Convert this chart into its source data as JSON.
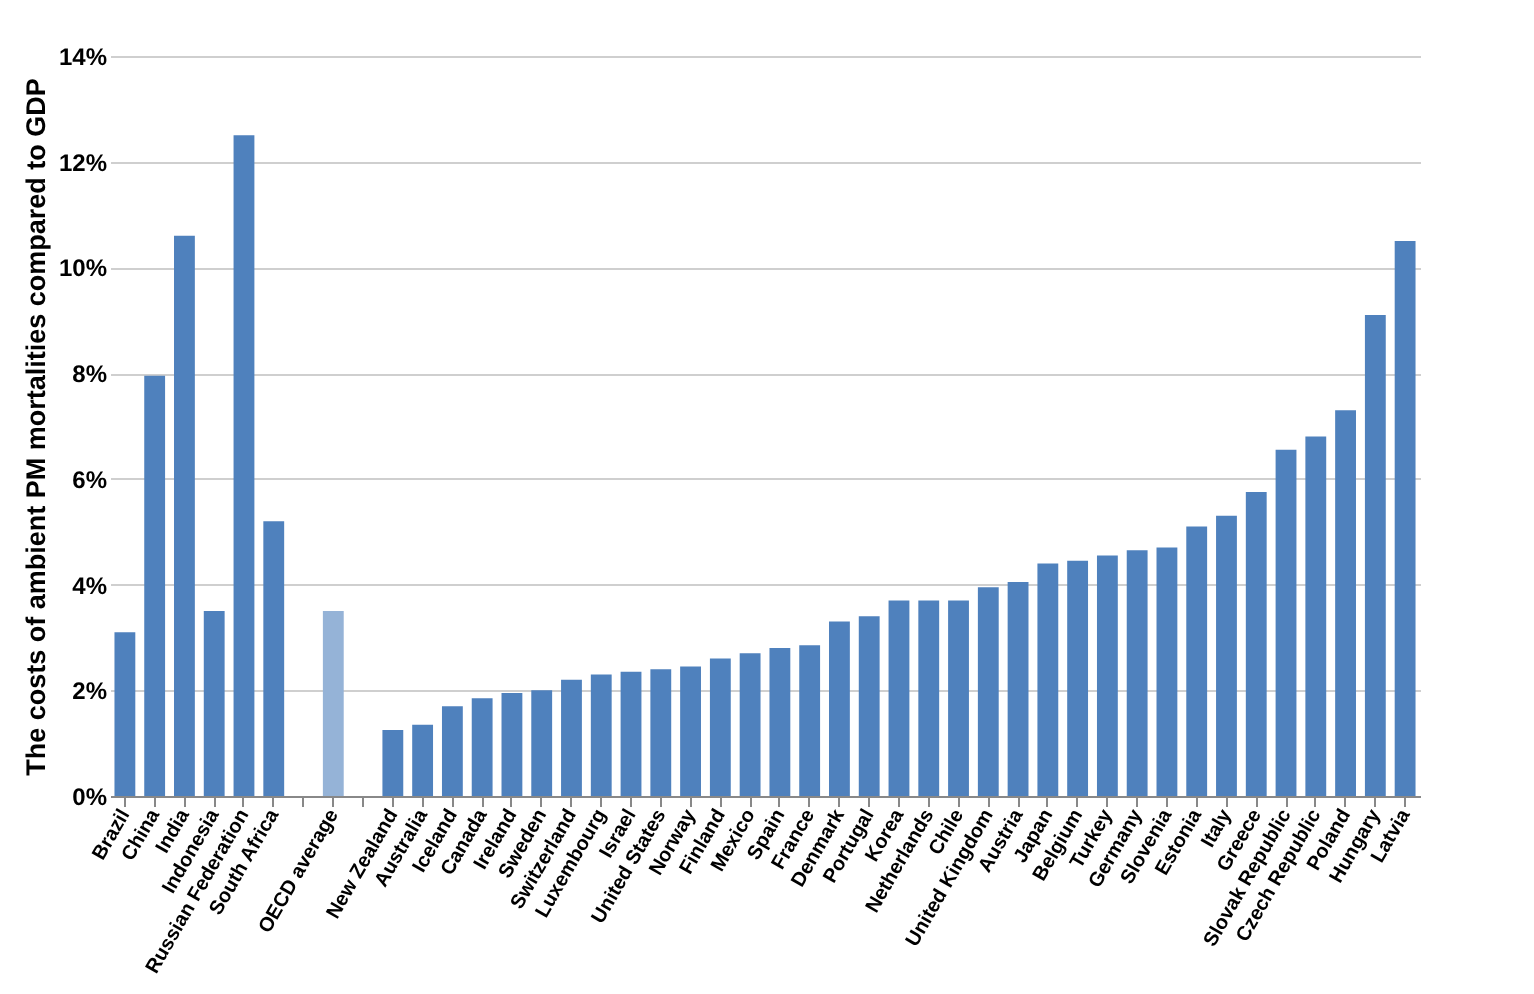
{
  "chart_data": {
    "type": "bar",
    "ylabel": "The costs of ambient PM mortalities compared to GDP",
    "categories": [
      "Brazil",
      "China",
      "India",
      "Indonesia",
      "Russian Federation",
      "South Africa",
      null,
      "OECD average",
      null,
      "New Zealand",
      "Australia",
      "Iceland",
      "Canada",
      "Ireland",
      "Sweden",
      "Switzerland",
      "Luxembourg",
      "Israel",
      "United States",
      "Norway",
      "Finland",
      "Mexico",
      "Spain",
      "France",
      "Denmark",
      "Portugal",
      "Korea",
      "Netherlands",
      "Chile",
      "United Kingdom",
      "Austria",
      "Japan",
      "Belgium",
      "Turkey",
      "Germany",
      "Slovenia",
      "Estonia",
      "Italy",
      "Greece",
      "Slovak Republic",
      "Czech Republic",
      "Poland",
      "Hungary",
      "Latvia"
    ],
    "values": [
      3.1,
      7.95,
      10.6,
      3.5,
      12.5,
      5.2,
      null,
      3.5,
      null,
      1.25,
      1.35,
      1.7,
      1.85,
      1.95,
      2.0,
      2.2,
      2.3,
      2.35,
      2.4,
      2.45,
      2.6,
      2.7,
      2.8,
      2.85,
      3.3,
      3.4,
      3.7,
      3.7,
      3.7,
      3.95,
      4.05,
      4.4,
      4.45,
      4.55,
      4.65,
      4.7,
      5.1,
      5.3,
      5.75,
      6.55,
      6.8,
      7.3,
      9.1,
      10.5
    ],
    "colors": [
      "#4f81bd",
      "#4f81bd",
      "#4f81bd",
      "#4f81bd",
      "#4f81bd",
      "#4f81bd",
      null,
      "#95b3d7",
      null,
      "#4f81bd",
      "#4f81bd",
      "#4f81bd",
      "#4f81bd",
      "#4f81bd",
      "#4f81bd",
      "#4f81bd",
      "#4f81bd",
      "#4f81bd",
      "#4f81bd",
      "#4f81bd",
      "#4f81bd",
      "#4f81bd",
      "#4f81bd",
      "#4f81bd",
      "#4f81bd",
      "#4f81bd",
      "#4f81bd",
      "#4f81bd",
      "#4f81bd",
      "#4f81bd",
      "#4f81bd",
      "#4f81bd",
      "#4f81bd",
      "#4f81bd",
      "#4f81bd",
      "#4f81bd",
      "#4f81bd",
      "#4f81bd",
      "#4f81bd",
      "#4f81bd",
      "#4f81bd",
      "#4f81bd",
      "#4f81bd",
      "#4f81bd"
    ],
    "ylim": [
      0,
      14
    ],
    "yticks": [
      {
        "value": 0,
        "label": "0%"
      },
      {
        "value": 2,
        "label": "2%"
      },
      {
        "value": 4,
        "label": "4%"
      },
      {
        "value": 6,
        "label": "6%"
      },
      {
        "value": 8,
        "label": "8%"
      },
      {
        "value": 10,
        "label": "10%"
      },
      {
        "value": 12,
        "label": "12%"
      },
      {
        "value": 14,
        "label": "14%"
      }
    ],
    "grid": "y"
  }
}
